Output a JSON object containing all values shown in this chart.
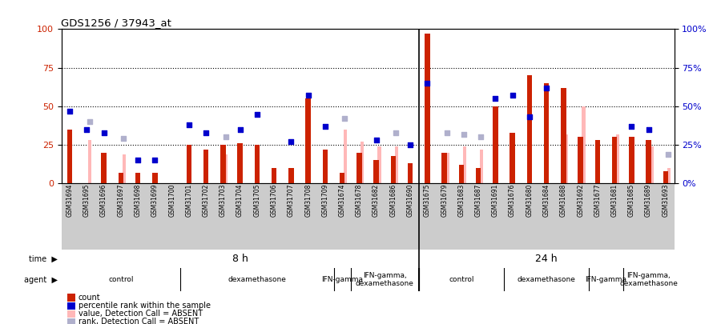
{
  "title": "GDS1256 / 37943_at",
  "samples": [
    "GSM31694",
    "GSM31695",
    "GSM31696",
    "GSM31697",
    "GSM31698",
    "GSM31699",
    "GSM31700",
    "GSM31701",
    "GSM31702",
    "GSM31703",
    "GSM31704",
    "GSM31705",
    "GSM31706",
    "GSM31707",
    "GSM31708",
    "GSM31709",
    "GSM31674",
    "GSM31678",
    "GSM31682",
    "GSM31686",
    "GSM31690",
    "GSM31675",
    "GSM31679",
    "GSM31683",
    "GSM31687",
    "GSM31691",
    "GSM31676",
    "GSM31680",
    "GSM31684",
    "GSM31688",
    "GSM31692",
    "GSM31677",
    "GSM31681",
    "GSM31685",
    "GSM31689",
    "GSM31693"
  ],
  "count": [
    35,
    0,
    20,
    7,
    7,
    7,
    0,
    25,
    22,
    25,
    26,
    25,
    10,
    10,
    55,
    22,
    7,
    20,
    15,
    18,
    13,
    97,
    20,
    12,
    10,
    50,
    33,
    70,
    65,
    62,
    30,
    28,
    30,
    30,
    28,
    8
  ],
  "percentile_rank": [
    47,
    35,
    33,
    0,
    15,
    15,
    0,
    38,
    33,
    0,
    35,
    45,
    0,
    27,
    57,
    37,
    0,
    0,
    28,
    0,
    25,
    65,
    0,
    0,
    0,
    55,
    57,
    43,
    62,
    0,
    0,
    0,
    0,
    37,
    35,
    0
  ],
  "value_absent": [
    0,
    28,
    0,
    19,
    0,
    0,
    0,
    0,
    0,
    19,
    0,
    0,
    0,
    0,
    0,
    0,
    35,
    27,
    24,
    24,
    0,
    0,
    20,
    24,
    22,
    0,
    0,
    0,
    0,
    32,
    50,
    0,
    32,
    0,
    24,
    10
  ],
  "rank_absent": [
    0,
    40,
    0,
    29,
    0,
    0,
    0,
    0,
    0,
    30,
    0,
    0,
    0,
    0,
    0,
    0,
    42,
    0,
    0,
    33,
    0,
    0,
    33,
    32,
    30,
    0,
    0,
    0,
    0,
    0,
    0,
    0,
    0,
    0,
    0,
    19
  ],
  "color_count": "#cc2200",
  "color_rank": "#0000cc",
  "color_value_absent": "#ffb8b8",
  "color_rank_absent": "#b0b0cc",
  "color_time_bg": "#77ee77",
  "color_agent_bg": "#ee77ee",
  "color_xlabel_bg": "#cccccc",
  "split_idx": 21,
  "agent_groups": [
    {
      "start": 0,
      "end": 7,
      "label": "control"
    },
    {
      "start": 7,
      "end": 16,
      "label": "dexamethasone"
    },
    {
      "start": 16,
      "end": 17,
      "label": "IFN-gamma"
    },
    {
      "start": 17,
      "end": 21,
      "label": "IFN-gamma,\ndexamethasone"
    },
    {
      "start": 21,
      "end": 26,
      "label": "control"
    },
    {
      "start": 26,
      "end": 31,
      "label": "dexamethasone"
    },
    {
      "start": 31,
      "end": 33,
      "label": "IFN-gamma"
    },
    {
      "start": 33,
      "end": 36,
      "label": "IFN-gamma,\ndexamethasone"
    }
  ],
  "yticks": [
    0,
    25,
    50,
    75,
    100
  ],
  "legend_items": [
    {
      "color": "#cc2200",
      "label": "count"
    },
    {
      "color": "#0000cc",
      "label": "percentile rank within the sample"
    },
    {
      "color": "#ffb8b8",
      "label": "value, Detection Call = ABSENT"
    },
    {
      "color": "#b0b0cc",
      "label": "rank, Detection Call = ABSENT"
    }
  ]
}
